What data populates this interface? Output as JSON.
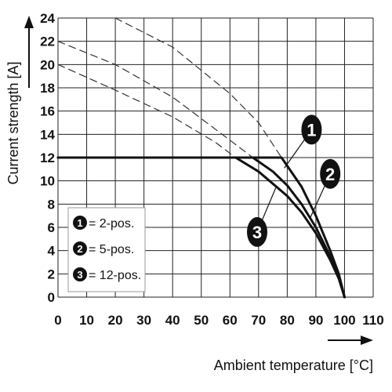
{
  "chart_data": {
    "type": "line",
    "xlabel": "Ambient temperature [°C]",
    "ylabel": "Current strength [A]",
    "xlim": [
      0,
      110
    ],
    "ylim": [
      0,
      24
    ],
    "x_ticks": [
      0,
      10,
      20,
      30,
      40,
      50,
      60,
      70,
      80,
      90,
      100,
      110
    ],
    "y_ticks": [
      0,
      2,
      4,
      6,
      8,
      10,
      12,
      14,
      16,
      18,
      20,
      22,
      24
    ],
    "grid": true,
    "legend_position": "bottom-left",
    "legend": [
      {
        "marker": "1",
        "text": "= 2-pos."
      },
      {
        "marker": "2",
        "text": "= 5-pos."
      },
      {
        "marker": "3",
        "text": "= 12-pos."
      }
    ],
    "series": [
      {
        "marker": "1",
        "style": "solid",
        "x": [
          0,
          78,
          85,
          90,
          95,
          98,
          100
        ],
        "y": [
          12,
          12,
          9.5,
          7,
          4,
          2,
          0
        ]
      },
      {
        "marker": "2",
        "style": "solid",
        "x": [
          0,
          68,
          75,
          80,
          85,
          90,
          95,
          98,
          100
        ],
        "y": [
          12,
          12,
          10.8,
          9.6,
          8,
          6,
          3.5,
          1.8,
          0
        ]
      },
      {
        "marker": "3",
        "style": "solid",
        "x": [
          0,
          62,
          70,
          80,
          85,
          90,
          95,
          98,
          100
        ],
        "y": [
          12,
          12,
          10.8,
          8.7,
          7.3,
          5.5,
          3.2,
          1.6,
          0
        ]
      },
      {
        "marker": "1",
        "style": "dashed",
        "x": [
          20,
          40,
          60,
          70,
          78
        ],
        "y": [
          24,
          21.5,
          17.5,
          15,
          12
        ]
      },
      {
        "marker": "2",
        "style": "dashed",
        "x": [
          0,
          20,
          40,
          60,
          68
        ],
        "y": [
          22,
          20,
          17.2,
          13.5,
          12
        ]
      },
      {
        "marker": "3",
        "style": "dashed",
        "x": [
          0,
          20,
          40,
          55,
          62
        ],
        "y": [
          20,
          17.8,
          15.5,
          13.3,
          12
        ]
      }
    ],
    "callouts": [
      {
        "marker": "1",
        "x": 88.5,
        "y": 14.4,
        "pointer": [
          79,
          11.1
        ]
      },
      {
        "marker": "2",
        "x": 95,
        "y": 10.6,
        "pointer": [
          88,
          6.8
        ]
      },
      {
        "marker": "3",
        "x": 69.5,
        "y": 5.6,
        "pointer": [
          76,
          9.4
        ]
      }
    ]
  },
  "colors": {
    "line": "#111111",
    "dash": "#333333",
    "grid": "#222222",
    "badge": "#111111"
  }
}
